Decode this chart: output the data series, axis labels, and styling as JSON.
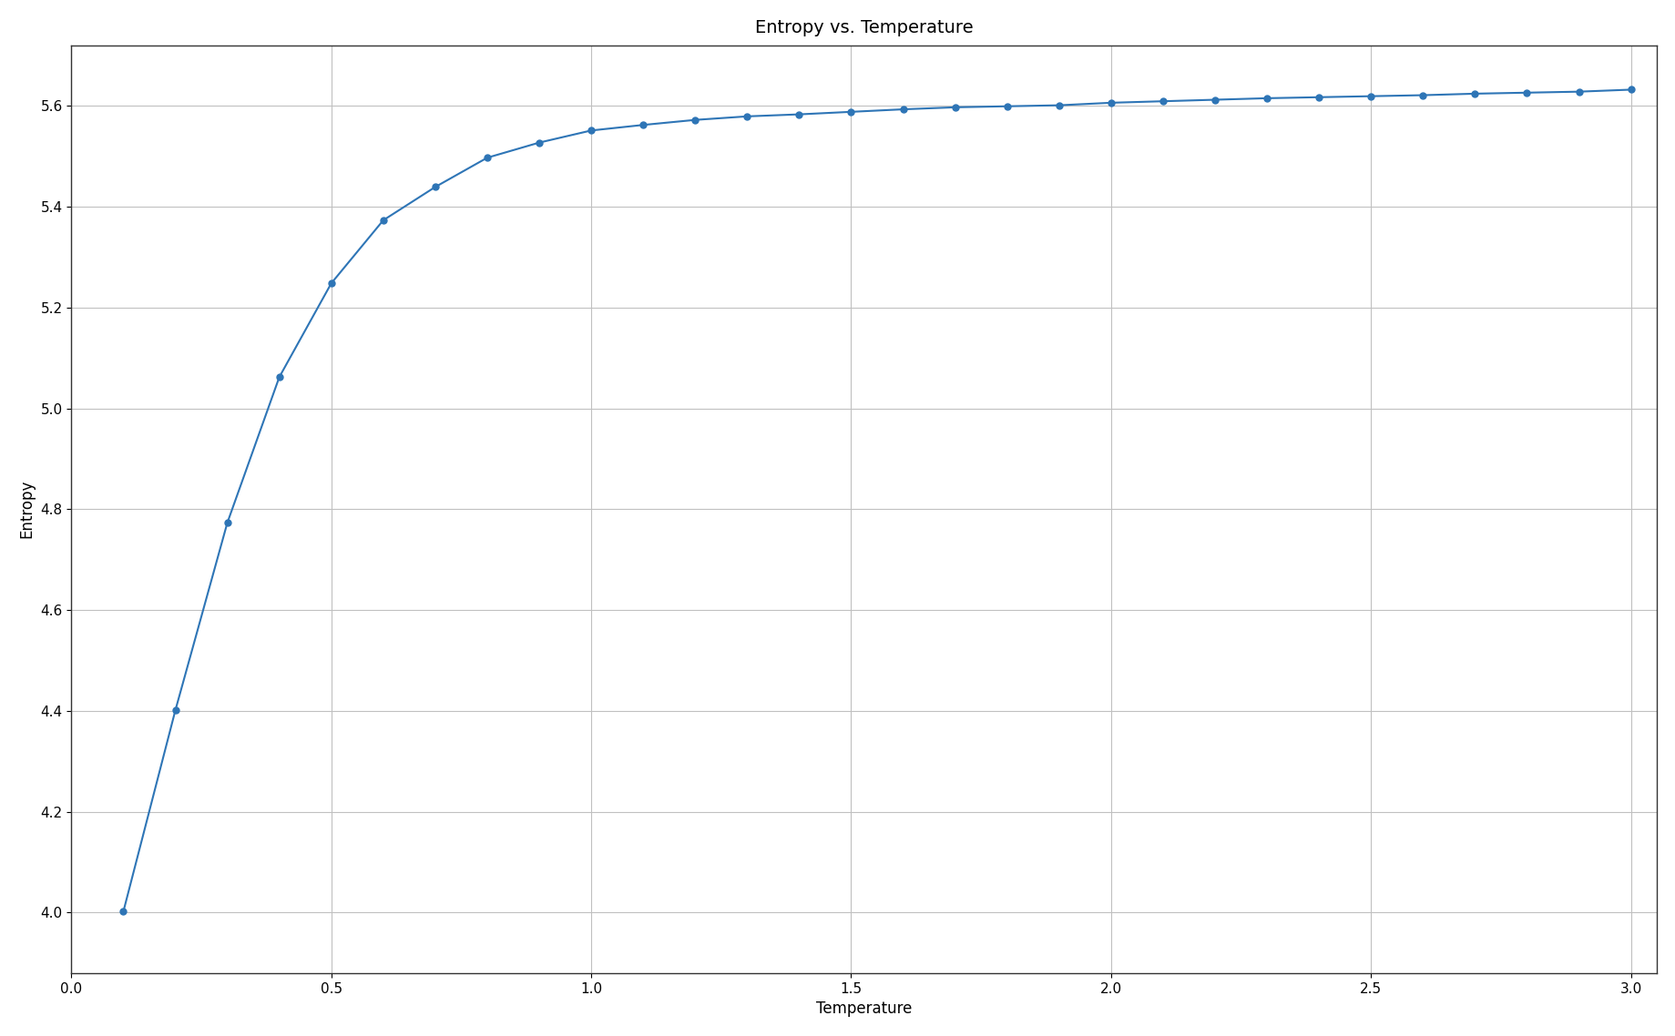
{
  "title": "Entropy vs. Temperature",
  "xlabel": "Temperature",
  "ylabel": "Entropy",
  "line_color": "#2e75b6",
  "marker": "o",
  "marker_size": 5,
  "line_width": 1.5,
  "xlim": [
    0.0,
    3.05
  ],
  "ylim": [
    3.88,
    5.72
  ],
  "grid": true,
  "temperatures": [
    0.1,
    0.2,
    0.3,
    0.4,
    0.5,
    0.6,
    0.7,
    0.8,
    0.9,
    1.0,
    1.1,
    1.2,
    1.3,
    1.4,
    1.5,
    1.6,
    1.7,
    1.8,
    1.9,
    2.0,
    2.1,
    2.2,
    2.3,
    2.4,
    2.5,
    2.6,
    2.7,
    2.8,
    2.9,
    3.0
  ],
  "entropies": [
    4.002,
    4.401,
    4.773,
    5.062,
    5.248,
    5.373,
    5.439,
    5.497,
    5.527,
    5.551,
    5.562,
    5.572,
    5.579,
    5.583,
    5.588,
    5.593,
    5.597,
    5.599,
    5.601,
    5.606,
    5.609,
    5.612,
    5.615,
    5.617,
    5.619,
    5.621,
    5.624,
    5.626,
    5.628,
    5.632
  ],
  "xticks": [
    0.0,
    0.5,
    1.0,
    1.5,
    2.0,
    2.5,
    3.0
  ],
  "yticks": [
    4.0,
    4.2,
    4.4,
    4.6,
    4.8,
    5.0,
    5.2,
    5.4,
    5.6
  ],
  "title_fontsize": 14,
  "label_fontsize": 12,
  "tick_fontsize": 11,
  "background_color": "#ffffff",
  "figure_background": "#ffffff",
  "grid_color": "#c0c0c0",
  "grid_linewidth": 0.8,
  "spine_color": "#333333",
  "spine_linewidth": 1.0
}
